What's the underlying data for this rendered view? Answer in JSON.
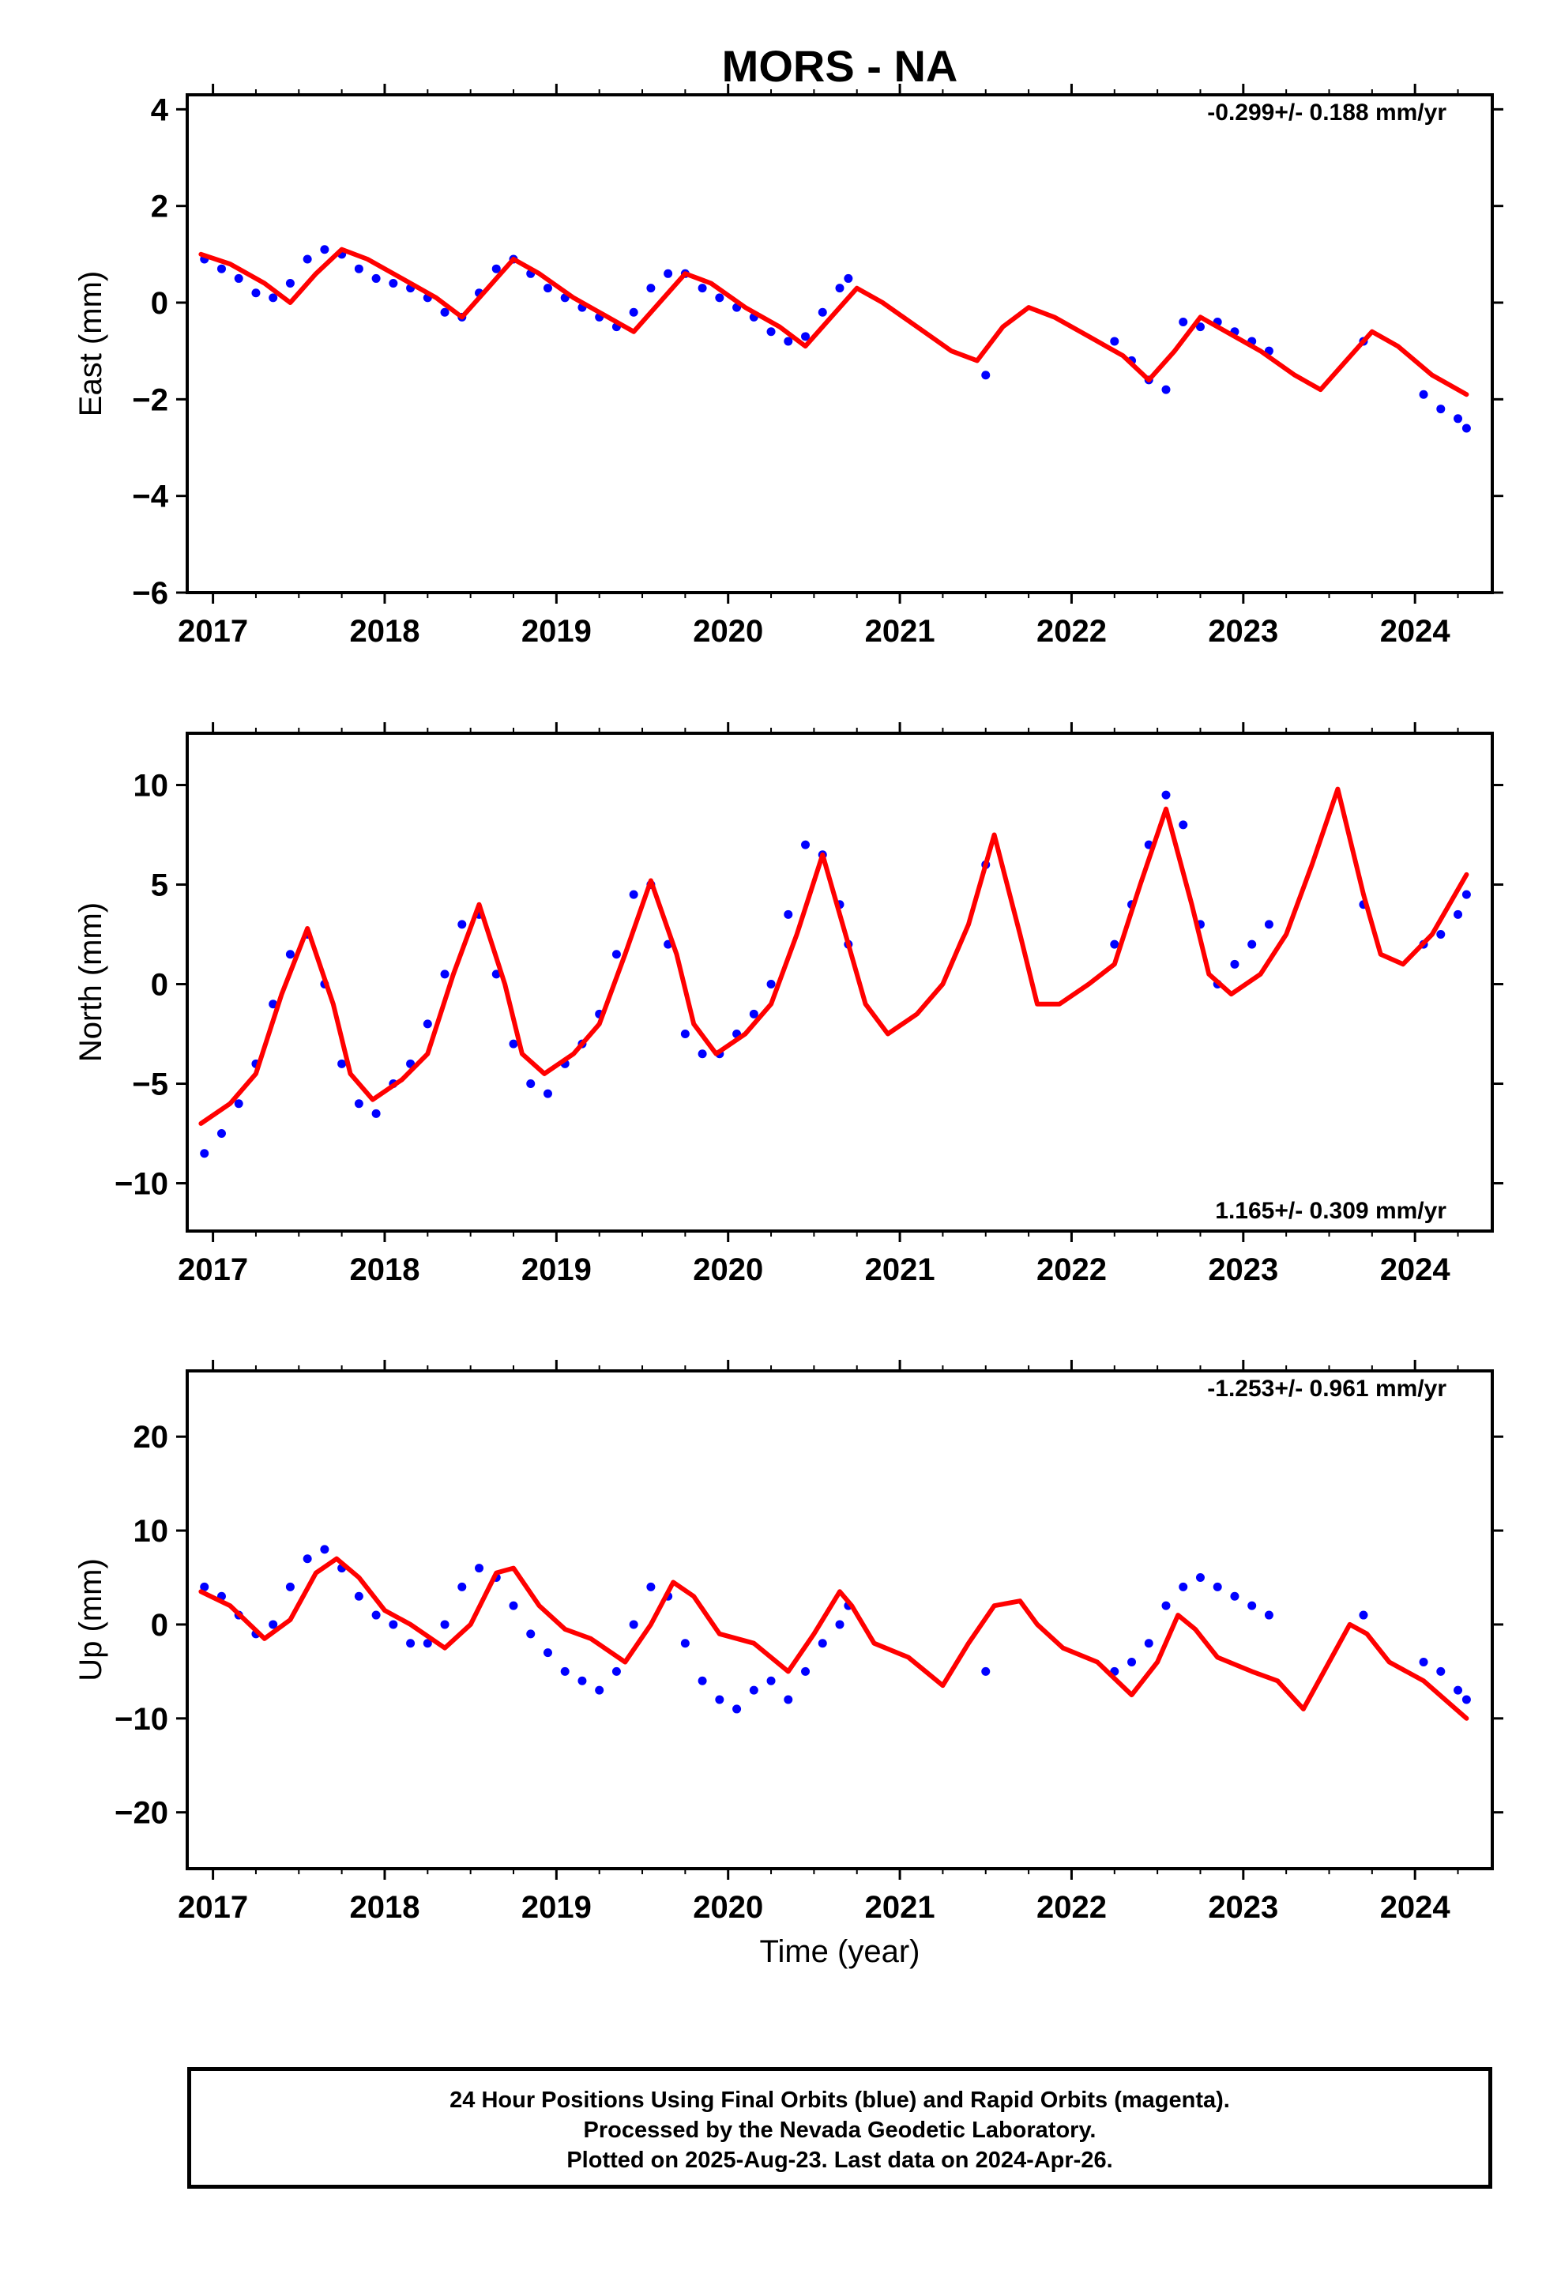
{
  "title": "MORS - NA",
  "colors": {
    "points": "#0000ff",
    "fit": "#ff0000",
    "axes": "#000000"
  },
  "xlabel": "Time (year)",
  "caption": [
    "24 Hour Positions Using Final Orbits (blue) and Rapid Orbits (magenta).",
    "Processed by the Nevada Geodetic Laboratory.",
    "Plotted on 2025-Aug-23. Last data on 2024-Apr-26."
  ],
  "chart_data": [
    {
      "type": "scatter",
      "ylabel": "East (mm)",
      "rate_text": "-0.299+/- 0.188 mm/yr",
      "rate_position": "top-right",
      "xlim": [
        2016.85,
        2024.45
      ],
      "ylim": [
        -6,
        4.3
      ],
      "x_ticks": [
        2017,
        2018,
        2019,
        2020,
        2021,
        2022,
        2023,
        2024
      ],
      "x_tick_labels": [
        "2017",
        "2018",
        "2019",
        "2020",
        "2021",
        "2022",
        "2023",
        "2024"
      ],
      "y_ticks": [
        -6,
        -4,
        -2,
        0,
        2,
        4
      ],
      "y_tick_labels": [
        "−6",
        "−4",
        "−2",
        "0",
        "2",
        "4"
      ],
      "grid": false,
      "series": [
        {
          "type": "scatter",
          "x": [
            2016.95,
            2017.05,
            2017.15,
            2017.25,
            2017.35,
            2017.45,
            2017.55,
            2017.65,
            2017.75,
            2017.85,
            2017.95,
            2018.05,
            2018.15,
            2018.25,
            2018.35,
            2018.45,
            2018.55,
            2018.65,
            2018.75,
            2018.85,
            2018.95,
            2019.05,
            2019.15,
            2019.25,
            2019.35,
            2019.45,
            2019.55,
            2019.65,
            2019.75,
            2019.85,
            2019.95,
            2020.05,
            2020.15,
            2020.25,
            2020.35,
            2020.45,
            2020.55,
            2020.65,
            2020.7,
            2021.5,
            2022.25,
            2022.35,
            2022.45,
            2022.55,
            2022.65,
            2022.75,
            2022.85,
            2022.95,
            2023.05,
            2023.15,
            2023.7,
            2024.05,
            2024.15,
            2024.25,
            2024.3
          ],
          "y": [
            0.9,
            0.7,
            0.5,
            0.2,
            0.1,
            0.4,
            0.9,
            1.1,
            1.0,
            0.7,
            0.5,
            0.4,
            0.3,
            0.1,
            -0.2,
            -0.3,
            0.2,
            0.7,
            0.9,
            0.6,
            0.3,
            0.1,
            -0.1,
            -0.3,
            -0.5,
            -0.2,
            0.3,
            0.6,
            0.6,
            0.3,
            0.1,
            -0.1,
            -0.3,
            -0.6,
            -0.8,
            -0.7,
            -0.2,
            0.3,
            0.5,
            -1.5,
            -0.8,
            -1.2,
            -1.6,
            -1.8,
            -0.4,
            -0.5,
            -0.4,
            -0.6,
            -0.8,
            -1.0,
            -0.8,
            -1.9,
            -2.2,
            -2.4,
            -2.6
          ]
        },
        {
          "type": "line",
          "x": [
            2016.93,
            2017.1,
            2017.3,
            2017.45,
            2017.6,
            2017.75,
            2017.9,
            2018.1,
            2018.3,
            2018.45,
            2018.6,
            2018.75,
            2018.9,
            2019.1,
            2019.3,
            2019.45,
            2019.6,
            2019.75,
            2019.9,
            2020.1,
            2020.3,
            2020.45,
            2020.6,
            2020.75,
            2020.9,
            2021.1,
            2021.3,
            2021.45,
            2021.6,
            2021.75,
            2021.9,
            2022.1,
            2022.3,
            2022.45,
            2022.6,
            2022.75,
            2022.9,
            2023.1,
            2023.3,
            2023.45,
            2023.6,
            2023.75,
            2023.9,
            2024.1,
            2024.3
          ],
          "y": [
            1.0,
            0.8,
            0.4,
            0.0,
            0.6,
            1.1,
            0.9,
            0.5,
            0.1,
            -0.3,
            0.3,
            0.9,
            0.6,
            0.1,
            -0.3,
            -0.6,
            0.0,
            0.6,
            0.4,
            -0.1,
            -0.5,
            -0.9,
            -0.3,
            0.3,
            0.0,
            -0.5,
            -1.0,
            -1.2,
            -0.5,
            -0.1,
            -0.3,
            -0.7,
            -1.1,
            -1.6,
            -1.0,
            -0.3,
            -0.6,
            -1.0,
            -1.5,
            -1.8,
            -1.2,
            -0.6,
            -0.9,
            -1.5,
            -1.9
          ]
        }
      ]
    },
    {
      "type": "scatter",
      "ylabel": "North (mm)",
      "rate_text": "1.165+/- 0.309 mm/yr",
      "rate_position": "bottom-right",
      "xlim": [
        2016.85,
        2024.45
      ],
      "ylim": [
        -12.4,
        12.6
      ],
      "x_ticks": [
        2017,
        2018,
        2019,
        2020,
        2021,
        2022,
        2023,
        2024
      ],
      "x_tick_labels": [
        "2017",
        "2018",
        "2019",
        "2020",
        "2021",
        "2022",
        "2023",
        "2024"
      ],
      "y_ticks": [
        -10,
        -5,
        0,
        5,
        10
      ],
      "y_tick_labels": [
        "−10",
        "−5",
        "0",
        "5",
        "10"
      ],
      "grid": false,
      "series": [
        {
          "type": "scatter",
          "x": [
            2016.95,
            2017.05,
            2017.15,
            2017.25,
            2017.35,
            2017.45,
            2017.55,
            2017.65,
            2017.75,
            2017.85,
            2017.95,
            2018.05,
            2018.15,
            2018.25,
            2018.35,
            2018.45,
            2018.55,
            2018.65,
            2018.75,
            2018.85,
            2018.95,
            2019.05,
            2019.15,
            2019.25,
            2019.35,
            2019.45,
            2019.55,
            2019.65,
            2019.75,
            2019.85,
            2019.95,
            2020.05,
            2020.15,
            2020.25,
            2020.35,
            2020.45,
            2020.55,
            2020.65,
            2020.7,
            2021.5,
            2022.25,
            2022.35,
            2022.45,
            2022.55,
            2022.65,
            2022.75,
            2022.85,
            2022.95,
            2023.05,
            2023.15,
            2023.7,
            2024.05,
            2024.15,
            2024.25,
            2024.3
          ],
          "y": [
            -8.5,
            -7.5,
            -6.0,
            -4.0,
            -1.0,
            1.5,
            2.5,
            0.0,
            -4.0,
            -6.0,
            -6.5,
            -5.0,
            -4.0,
            -2.0,
            0.5,
            3.0,
            3.5,
            0.5,
            -3.0,
            -5.0,
            -5.5,
            -4.0,
            -3.0,
            -1.5,
            1.5,
            4.5,
            5.0,
            2.0,
            -2.5,
            -3.5,
            -3.5,
            -2.5,
            -1.5,
            0.0,
            3.5,
            7.0,
            6.5,
            4.0,
            2.0,
            6.0,
            2.0,
            4.0,
            7.0,
            9.5,
            8.0,
            3.0,
            0.0,
            1.0,
            2.0,
            3.0,
            4.0,
            2.0,
            2.5,
            3.5,
            4.5
          ]
        },
        {
          "type": "line",
          "x": [
            2016.93,
            2017.1,
            2017.25,
            2017.4,
            2017.55,
            2017.7,
            2017.8,
            2017.93,
            2018.1,
            2018.25,
            2018.4,
            2018.55,
            2018.7,
            2018.8,
            2018.93,
            2019.1,
            2019.25,
            2019.4,
            2019.55,
            2019.7,
            2019.8,
            2019.93,
            2020.1,
            2020.25,
            2020.4,
            2020.55,
            2020.7,
            2020.8,
            2020.93,
            2021.1,
            2021.25,
            2021.4,
            2021.55,
            2021.7,
            2021.8,
            2021.93,
            2022.1,
            2022.25,
            2022.4,
            2022.55,
            2022.7,
            2022.8,
            2022.93,
            2023.1,
            2023.25,
            2023.4,
            2023.55,
            2023.7,
            2023.8,
            2023.93,
            2024.1,
            2024.3
          ],
          "y": [
            -7.0,
            -6.0,
            -4.5,
            -0.5,
            2.8,
            -1.0,
            -4.5,
            -5.8,
            -4.8,
            -3.5,
            0.5,
            4.0,
            0.0,
            -3.5,
            -4.5,
            -3.5,
            -2.0,
            1.5,
            5.2,
            1.5,
            -2.0,
            -3.5,
            -2.5,
            -1.0,
            2.5,
            6.5,
            2.0,
            -1.0,
            -2.5,
            -1.5,
            0.0,
            3.0,
            7.5,
            2.5,
            -1.0,
            -1.0,
            0.0,
            1.0,
            5.0,
            8.8,
            4.0,
            0.5,
            -0.5,
            0.5,
            2.5,
            6.0,
            9.8,
            4.5,
            1.5,
            1.0,
            2.5,
            5.5
          ]
        }
      ]
    },
    {
      "type": "scatter",
      "ylabel": "Up (mm)",
      "rate_text": "-1.253+/- 0.961 mm/yr",
      "rate_position": "top-right",
      "xlim": [
        2016.85,
        2024.45
      ],
      "ylim": [
        -26,
        27
      ],
      "x_ticks": [
        2017,
        2018,
        2019,
        2020,
        2021,
        2022,
        2023,
        2024
      ],
      "x_tick_labels": [
        "2017",
        "2018",
        "2019",
        "2020",
        "2021",
        "2022",
        "2023",
        "2024"
      ],
      "y_ticks": [
        -20,
        -10,
        0,
        10,
        20
      ],
      "y_tick_labels": [
        "−20",
        "−10",
        "0",
        "10",
        "20"
      ],
      "grid": false,
      "series": [
        {
          "type": "scatter",
          "x": [
            2016.95,
            2017.05,
            2017.15,
            2017.25,
            2017.35,
            2017.45,
            2017.55,
            2017.65,
            2017.75,
            2017.85,
            2017.95,
            2018.05,
            2018.15,
            2018.25,
            2018.35,
            2018.45,
            2018.55,
            2018.65,
            2018.75,
            2018.85,
            2018.95,
            2019.05,
            2019.15,
            2019.25,
            2019.35,
            2019.45,
            2019.55,
            2019.65,
            2019.75,
            2019.85,
            2019.95,
            2020.05,
            2020.15,
            2020.25,
            2020.35,
            2020.45,
            2020.55,
            2020.65,
            2020.7,
            2021.5,
            2022.25,
            2022.35,
            2022.45,
            2022.55,
            2022.65,
            2022.75,
            2022.85,
            2022.95,
            2023.05,
            2023.15,
            2023.7,
            2024.05,
            2024.15,
            2024.25,
            2024.3
          ],
          "y": [
            4.0,
            3.0,
            1.0,
            -1.0,
            0.0,
            4.0,
            7.0,
            8.0,
            6.0,
            3.0,
            1.0,
            0.0,
            -2.0,
            -2.0,
            0.0,
            4.0,
            6.0,
            5.0,
            2.0,
            -1.0,
            -3.0,
            -5.0,
            -6.0,
            -7.0,
            -5.0,
            0.0,
            4.0,
            3.0,
            -2.0,
            -6.0,
            -8.0,
            -9.0,
            -7.0,
            -6.0,
            -8.0,
            -5.0,
            -2.0,
            0.0,
            2.0,
            -5.0,
            -5.0,
            -4.0,
            -2.0,
            2.0,
            4.0,
            5.0,
            4.0,
            3.0,
            2.0,
            1.0,
            1.0,
            -4.0,
            -5.0,
            -7.0,
            -8.0
          ]
        },
        {
          "type": "line",
          "x": [
            2016.93,
            2017.1,
            2017.3,
            2017.45,
            2017.6,
            2017.72,
            2017.85,
            2018.0,
            2018.15,
            2018.35,
            2018.5,
            2018.65,
            2018.75,
            2018.9,
            2019.05,
            2019.2,
            2019.4,
            2019.55,
            2019.68,
            2019.8,
            2019.95,
            2020.15,
            2020.35,
            2020.5,
            2020.65,
            2020.72,
            2020.85,
            2021.05,
            2021.25,
            2021.4,
            2021.55,
            2021.7,
            2021.8,
            2021.95,
            2022.15,
            2022.35,
            2022.5,
            2022.62,
            2022.72,
            2022.85,
            2023.05,
            2023.2,
            2023.35,
            2023.5,
            2023.62,
            2023.72,
            2023.85,
            2024.05,
            2024.3
          ],
          "y": [
            3.5,
            2.0,
            -1.5,
            0.5,
            5.5,
            7.0,
            5.0,
            1.5,
            0.0,
            -2.5,
            0.0,
            5.5,
            6.0,
            2.0,
            -0.5,
            -1.5,
            -4.0,
            0.0,
            4.5,
            3.0,
            -1.0,
            -2.0,
            -5.0,
            -1.0,
            3.5,
            2.0,
            -2.0,
            -3.5,
            -6.5,
            -2.0,
            2.0,
            2.5,
            0.0,
            -2.5,
            -4.0,
            -7.5,
            -4.0,
            1.0,
            -0.5,
            -3.5,
            -5.0,
            -6.0,
            -9.0,
            -4.0,
            0.0,
            -1.0,
            -4.0,
            -6.0,
            -10.0
          ]
        }
      ]
    }
  ]
}
